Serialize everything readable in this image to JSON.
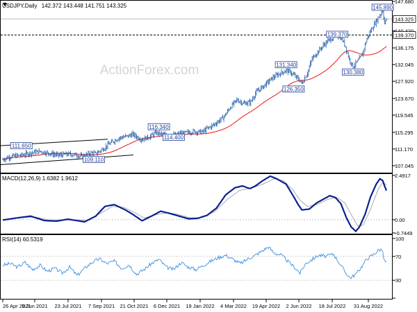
{
  "chart_data": [
    {
      "type": "candlestick",
      "symbol_label": "USDJPY,Daily",
      "ohlc_label": "142.372 143.448 141.751 143.325",
      "watermark": "ActionForex.com",
      "x_tick_labels": [
        "26 Apr 2021",
        "9 Jun 2021",
        "23 Jul 2021",
        "7 Sep 2021",
        "21 Oct 2021",
        "6 Dec 2021",
        "19 Jan 2022",
        "4 Mar 2022",
        "19 Apr 2022",
        "2 Jun 2022",
        "18 Jul 2022",
        "31 Aug 2022"
      ],
      "y_tick_labels": [
        "147.680",
        "140.420",
        "136.175",
        "132.045",
        "127.920",
        "123.670",
        "119.545",
        "115.295",
        "111.170",
        "107.045"
      ],
      "ylim": [
        105.5,
        147.68
      ],
      "last_price": "143.325",
      "level_price": "139.370",
      "price_annotations": [
        "145.890",
        "139.370",
        "131.340",
        "130.380",
        "126.350",
        "116.340",
        "114.400",
        "111.650",
        "109.110"
      ],
      "close_key": [
        [
          0,
          108.6
        ],
        [
          8,
          109.3
        ],
        [
          20,
          109.6
        ],
        [
          30,
          110.2
        ],
        [
          40,
          110.6
        ],
        [
          50,
          110.1
        ],
        [
          60,
          109.6
        ],
        [
          70,
          109.9
        ],
        [
          80,
          109.7
        ],
        [
          85,
          109.3
        ],
        [
          95,
          110.2
        ],
        [
          100,
          110.0
        ],
        [
          108,
          111.2
        ],
        [
          115,
          112.5
        ],
        [
          125,
          113.9
        ],
        [
          135,
          114.4
        ],
        [
          140,
          114.8
        ],
        [
          145,
          114.1
        ],
        [
          150,
          113.5
        ],
        [
          158,
          114.2
        ],
        [
          165,
          115.2
        ],
        [
          175,
          114.6
        ],
        [
          185,
          114.6
        ],
        [
          195,
          115.1
        ],
        [
          205,
          115.5
        ],
        [
          215,
          115.4
        ],
        [
          220,
          116.2
        ],
        [
          228,
          117.3
        ],
        [
          238,
          119.1
        ],
        [
          245,
          121.5
        ],
        [
          252,
          123.3
        ],
        [
          260,
          122.4
        ],
        [
          267,
          122.8
        ],
        [
          272,
          125.0
        ],
        [
          280,
          126.6
        ],
        [
          290,
          128.7
        ],
        [
          298,
          129.8
        ],
        [
          305,
          130.6
        ],
        [
          310,
          130.1
        ],
        [
          318,
          128.5
        ],
        [
          322,
          127.4
        ],
        [
          328,
          130.0
        ],
        [
          333,
          133.5
        ],
        [
          338,
          134.9
        ],
        [
          345,
          136.8
        ],
        [
          350,
          137.9
        ],
        [
          355,
          138.6
        ],
        [
          360,
          139.3
        ],
        [
          365,
          138.5
        ],
        [
          369,
          136.5
        ],
        [
          373,
          133.4
        ],
        [
          377,
          131.6
        ],
        [
          382,
          132.8
        ],
        [
          387,
          134.5
        ],
        [
          392,
          138.5
        ],
        [
          397,
          140.8
        ],
        [
          402,
          142.8
        ],
        [
          406,
          144.3
        ],
        [
          409,
          145.4
        ],
        [
          411,
          142.2
        ],
        [
          413,
          143.3
        ]
      ],
      "macd_label": "MACD(12,26,9) 1.6382 1.9612",
      "macd_tick_labels": [
        "2.4917",
        "0.00",
        "-0.7449"
      ],
      "macd_ylim": [
        -0.7449,
        2.4917
      ],
      "macd_key": [
        [
          0,
          -0.02
        ],
        [
          15,
          0.1
        ],
        [
          30,
          0.2
        ],
        [
          45,
          -0.05
        ],
        [
          58,
          -0.08
        ],
        [
          70,
          0.03
        ],
        [
          80,
          -0.05
        ],
        [
          88,
          -0.12
        ],
        [
          100,
          0.2
        ],
        [
          110,
          0.75
        ],
        [
          120,
          0.85
        ],
        [
          132,
          0.55
        ],
        [
          140,
          0.3
        ],
        [
          150,
          -0.06
        ],
        [
          160,
          0.2
        ],
        [
          170,
          0.48
        ],
        [
          180,
          0.35
        ],
        [
          190,
          0.2
        ],
        [
          200,
          0.05
        ],
        [
          210,
          0.08
        ],
        [
          220,
          0.25
        ],
        [
          230,
          0.65
        ],
        [
          240,
          1.4
        ],
        [
          250,
          1.8
        ],
        [
          258,
          1.9
        ],
        [
          266,
          1.75
        ],
        [
          272,
          1.9
        ],
        [
          280,
          2.2
        ],
        [
          288,
          2.45
        ],
        [
          295,
          2.3
        ],
        [
          305,
          2.0
        ],
        [
          312,
          1.4
        ],
        [
          318,
          0.85
        ],
        [
          322,
          0.55
        ],
        [
          330,
          0.6
        ],
        [
          338,
          0.95
        ],
        [
          345,
          1.15
        ],
        [
          352,
          1.35
        ],
        [
          358,
          1.25
        ],
        [
          364,
          0.9
        ],
        [
          370,
          0.1
        ],
        [
          375,
          -0.4
        ],
        [
          380,
          -0.65
        ],
        [
          384,
          -0.4
        ],
        [
          390,
          0.3
        ],
        [
          396,
          1.3
        ],
        [
          402,
          2.0
        ],
        [
          406,
          2.3
        ],
        [
          409,
          2.2
        ],
        [
          411,
          1.9
        ],
        [
          413,
          1.64
        ]
      ],
      "macd_signal_key": [
        [
          0,
          0.0
        ],
        [
          20,
          0.12
        ],
        [
          35,
          0.15
        ],
        [
          50,
          -0.02
        ],
        [
          65,
          -0.02
        ],
        [
          80,
          -0.02
        ],
        [
          90,
          -0.05
        ],
        [
          105,
          0.35
        ],
        [
          118,
          0.75
        ],
        [
          130,
          0.7
        ],
        [
          142,
          0.4
        ],
        [
          152,
          0.1
        ],
        [
          165,
          0.28
        ],
        [
          178,
          0.4
        ],
        [
          190,
          0.28
        ],
        [
          202,
          0.1
        ],
        [
          214,
          0.12
        ],
        [
          228,
          0.45
        ],
        [
          242,
          1.15
        ],
        [
          255,
          1.65
        ],
        [
          268,
          1.78
        ],
        [
          280,
          2.0
        ],
        [
          292,
          2.3
        ],
        [
          302,
          2.2
        ],
        [
          312,
          1.7
        ],
        [
          320,
          1.1
        ],
        [
          328,
          0.75
        ],
        [
          338,
          0.85
        ],
        [
          350,
          1.15
        ],
        [
          360,
          1.25
        ],
        [
          368,
          0.95
        ],
        [
          375,
          0.3
        ],
        [
          382,
          -0.35
        ],
        [
          388,
          -0.3
        ],
        [
          396,
          0.6
        ],
        [
          404,
          1.7
        ],
        [
          409,
          2.1
        ],
        [
          413,
          1.96
        ]
      ],
      "rsi_label": "RSI(14) 60.5319",
      "rsi_tick_labels": [
        "100",
        "70",
        "30",
        "0"
      ],
      "rsi_ylim": [
        0,
        100
      ],
      "rsi_levels": [
        70,
        30
      ],
      "rsi_key": [
        [
          0,
          55
        ],
        [
          8,
          58
        ],
        [
          16,
          52
        ],
        [
          24,
          60
        ],
        [
          32,
          48
        ],
        [
          40,
          55
        ],
        [
          48,
          45
        ],
        [
          56,
          50
        ],
        [
          64,
          42
        ],
        [
          72,
          52
        ],
        [
          80,
          38
        ],
        [
          88,
          50
        ],
        [
          96,
          60
        ],
        [
          104,
          66
        ],
        [
          112,
          58
        ],
        [
          120,
          62
        ],
        [
          128,
          50
        ],
        [
          136,
          56
        ],
        [
          144,
          40
        ],
        [
          152,
          48
        ],
        [
          160,
          58
        ],
        [
          168,
          65
        ],
        [
          176,
          52
        ],
        [
          184,
          48
        ],
        [
          192,
          60
        ],
        [
          200,
          52
        ],
        [
          208,
          48
        ],
        [
          216,
          55
        ],
        [
          224,
          62
        ],
        [
          232,
          68
        ],
        [
          240,
          72
        ],
        [
          248,
          65
        ],
        [
          256,
          58
        ],
        [
          264,
          66
        ],
        [
          272,
          72
        ],
        [
          280,
          80
        ],
        [
          286,
          86
        ],
        [
          292,
          76
        ],
        [
          300,
          72
        ],
        [
          308,
          60
        ],
        [
          314,
          52
        ],
        [
          320,
          42
        ],
        [
          326,
          58
        ],
        [
          334,
          66
        ],
        [
          340,
          72
        ],
        [
          348,
          70
        ],
        [
          356,
          74
        ],
        [
          362,
          60
        ],
        [
          368,
          45
        ],
        [
          374,
          34
        ],
        [
          380,
          40
        ],
        [
          386,
          52
        ],
        [
          392,
          66
        ],
        [
          398,
          72
        ],
        [
          404,
          80
        ],
        [
          408,
          82
        ],
        [
          411,
          62
        ],
        [
          413,
          60.5
        ]
      ]
    }
  ]
}
